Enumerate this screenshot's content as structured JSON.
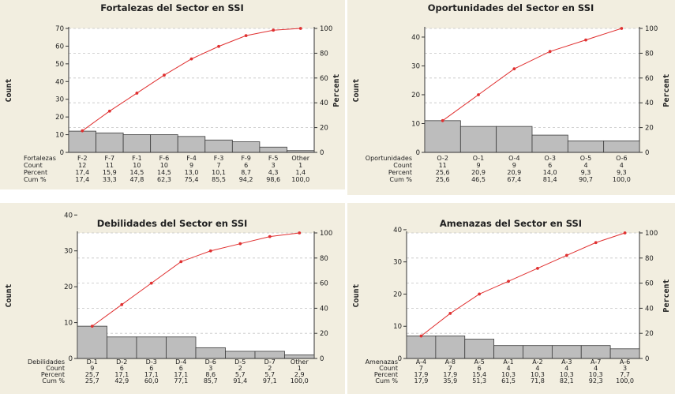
{
  "chart_data": [
    {
      "type": "bar",
      "title": "Fortalezas del Sector en SSI",
      "ylabel": "Count",
      "y2label": "Percent",
      "row_labels": [
        "Fortalezas",
        "Count",
        "Percent",
        "Cum %"
      ],
      "categories": [
        "F-2",
        "F-7",
        "F-1",
        "F-6",
        "F-4",
        "F-3",
        "F-9",
        "F-5",
        "Other"
      ],
      "counts": [
        "12",
        "11",
        "10",
        "10",
        "9",
        "7",
        "6",
        "3",
        "1"
      ],
      "percents": [
        "17,4",
        "15,9",
        "14,5",
        "14,5",
        "13,0",
        "10,1",
        "8,7",
        "4,3",
        "1,4"
      ],
      "cum_percents": [
        "17,4",
        "33,3",
        "47,8",
        "62,3",
        "75,4",
        "85,5",
        "94,2",
        "98,6",
        "100,0"
      ],
      "values": [
        12,
        11,
        10,
        10,
        9,
        7,
        6,
        3,
        1
      ],
      "cum_values": [
        17.4,
        33.3,
        47.8,
        62.3,
        75.4,
        85.5,
        94.2,
        98.6,
        100.0
      ],
      "ylim": [
        0,
        70
      ],
      "yticks": [
        0,
        10,
        20,
        30,
        40,
        50,
        60,
        70
      ],
      "y2lim": [
        0,
        100
      ],
      "y2ticks": [
        0,
        20,
        40,
        60,
        80,
        100
      ]
    },
    {
      "type": "bar",
      "title": "Oportunidades del Sector en SSI",
      "ylabel": "Count",
      "y2label": "Percent",
      "row_labels": [
        "Oportunidades",
        "Count",
        "Percent",
        "Cum %"
      ],
      "categories": [
        "O-2",
        "O-1",
        "O-4",
        "O-3",
        "O-5",
        "O-6"
      ],
      "counts": [
        "11",
        "9",
        "9",
        "6",
        "4",
        "4"
      ],
      "percents": [
        "25,6",
        "20,9",
        "20,9",
        "14,0",
        "9,3",
        "9,3"
      ],
      "cum_percents": [
        "25,6",
        "46,5",
        "67,4",
        "81,4",
        "90,7",
        "100,0"
      ],
      "values": [
        11,
        9,
        9,
        6,
        4,
        4
      ],
      "cum_values": [
        25.6,
        46.5,
        67.4,
        81.4,
        90.7,
        100.0
      ],
      "ylim": [
        0,
        43
      ],
      "yticks": [
        0,
        10,
        20,
        30,
        40
      ],
      "y2lim": [
        0,
        100
      ],
      "y2ticks": [
        0,
        20,
        40,
        60,
        80,
        100
      ]
    },
    {
      "type": "bar",
      "title": "Debilidades del Sector en SSI",
      "ylabel": "Count",
      "y2label": "",
      "row_labels": [
        "Debilidades",
        "Count",
        "Percent",
        "Cum %"
      ],
      "categories": [
        "D-1",
        "D-2",
        "D-3",
        "D-4",
        "D-6",
        "D-5",
        "D-7",
        "Other"
      ],
      "counts": [
        "9",
        "6",
        "6",
        "6",
        "3",
        "2",
        "2",
        "1"
      ],
      "percents": [
        "25,7",
        "17,1",
        "17,1",
        "17,1",
        "8,6",
        "5,7",
        "5,7",
        "2,9"
      ],
      "cum_percents": [
        "25,7",
        "42,9",
        "60,0",
        "77,1",
        "85,7",
        "91,4",
        "97,1",
        "100,0"
      ],
      "values": [
        9,
        6,
        6,
        6,
        3,
        2,
        2,
        1
      ],
      "cum_values": [
        25.7,
        42.9,
        60.0,
        77.1,
        85.7,
        91.4,
        97.1,
        100.0
      ],
      "ylim": [
        0,
        35
      ],
      "yticks": [
        0,
        10,
        20,
        30,
        40
      ],
      "y2lim": [
        0,
        100
      ],
      "y2ticks": [
        0,
        20,
        40,
        60,
        80,
        100
      ]
    },
    {
      "type": "bar",
      "title": "Amenazas del Sector en SSI",
      "ylabel": "Count",
      "y2label": "Percent",
      "row_labels": [
        "Amenazas",
        "Count",
        "Percent",
        "Cum %"
      ],
      "categories": [
        "A-4",
        "A-8",
        "A-5",
        "A-1",
        "A-2",
        "A-3",
        "A-7",
        "A-6"
      ],
      "counts": [
        "7",
        "7",
        "6",
        "4",
        "4",
        "4",
        "4",
        "3"
      ],
      "percents": [
        "17,9",
        "17,9",
        "15,4",
        "10,3",
        "10,3",
        "10,3",
        "10,3",
        "7,7"
      ],
      "cum_percents": [
        "17,9",
        "35,9",
        "51,3",
        "61,5",
        "71,8",
        "82,1",
        "92,3",
        "100,0"
      ],
      "values": [
        7,
        7,
        6,
        4,
        4,
        4,
        4,
        3
      ],
      "cum_values": [
        17.9,
        35.9,
        51.3,
        61.5,
        71.8,
        82.1,
        92.3,
        100.0
      ],
      "ylim": [
        0,
        39
      ],
      "yticks": [
        0,
        10,
        20,
        30,
        40
      ],
      "y2lim": [
        0,
        100
      ],
      "y2ticks": [
        0,
        20,
        40,
        60,
        80,
        100
      ]
    }
  ],
  "colors": {
    "panel_bg": "#f2eee0",
    "plot_bg": "#ffffff",
    "bar_fill": "#bdbdbd",
    "bar_stroke": "#3c3c3c",
    "line": "#e03030",
    "grid": "#c4c4c4"
  }
}
